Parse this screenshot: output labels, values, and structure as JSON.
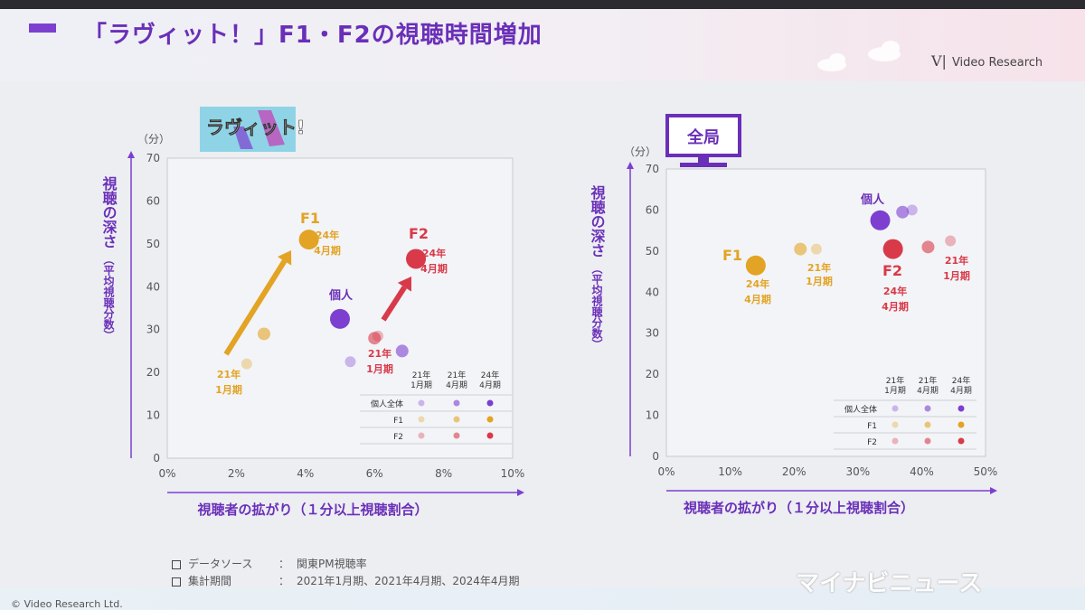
{
  "slide_title": "「ラヴィット！」F1・F2の視聴時間増加",
  "logo_text": "Video Research",
  "logo_mark": "V|",
  "colors": {
    "purple": "#7d3fd0",
    "yellow": "#e3a324",
    "red": "#d83a4a",
    "accent": "#6a2fb8"
  },
  "left_badge": "ラヴィット!",
  "right_badge": "全局",
  "notes": [
    {
      "key": "データソース",
      "sep": "：",
      "value": "関東PM視聴率"
    },
    {
      "key": "集計期間",
      "sep": "：",
      "value": "2021年1月期、2021年4月期、2024年4月期"
    }
  ],
  "watermark": "マイナビニュース",
  "copyright": "© Video Research Ltd.",
  "chart_data": [
    {
      "type": "scatter",
      "panel": "ラヴィット!",
      "xlabel": "視聴者の拡がり（１分以上視聴割合）",
      "ylabel_main": "視聴の深さ",
      "ylabel_sub": "（平均視聴分数）",
      "y_unit": "（分）",
      "xlim": [
        0,
        10
      ],
      "ylim": [
        0,
        70
      ],
      "x_ticks": [
        "0%",
        "2%",
        "4%",
        "6%",
        "8%",
        "10%"
      ],
      "y_ticks": [
        "0",
        "10",
        "20",
        "30",
        "40",
        "50",
        "60",
        "70"
      ],
      "series": [
        {
          "name": "個人全体",
          "color": "#7d3fd0",
          "points": [
            {
              "period": "21年1月期",
              "x": 5.3,
              "y": 22.5
            },
            {
              "period": "21年4月期",
              "x": 6.8,
              "y": 25.0
            },
            {
              "period": "24年4月期",
              "x": 5.0,
              "y": 32.5
            }
          ]
        },
        {
          "name": "F1",
          "color": "#e3a324",
          "points": [
            {
              "period": "21年1月期",
              "x": 2.3,
              "y": 22.0
            },
            {
              "period": "21年4月期",
              "x": 2.8,
              "y": 29.0
            },
            {
              "period": "24年4月期",
              "x": 4.1,
              "y": 51.0
            }
          ]
        },
        {
          "name": "F2",
          "color": "#d83a4a",
          "points": [
            {
              "period": "21年1月期",
              "x": 6.1,
              "y": 28.5
            },
            {
              "period": "21年4月期",
              "x": 6.0,
              "y": 28.0
            },
            {
              "period": "24年4月期",
              "x": 7.2,
              "y": 46.5
            }
          ]
        }
      ],
      "annotations": [
        {
          "text": "F1",
          "cls": "lbl-y"
        },
        {
          "text": "24年",
          "cls": "lbl-y"
        },
        {
          "text": "4月期",
          "cls": "lbl-y"
        },
        {
          "text": "F2",
          "cls": "lbl-r"
        },
        {
          "text": "24年",
          "cls": "lbl-r"
        },
        {
          "text": "4月期",
          "cls": "lbl-r"
        },
        {
          "text": "個人",
          "cls": "lbl-p"
        },
        {
          "text": "21年",
          "cls": "lbl-y"
        },
        {
          "text": "1月期",
          "cls": "lbl-y"
        },
        {
          "text": "21年",
          "cls": "lbl-r"
        },
        {
          "text": "1月期",
          "cls": "lbl-r"
        }
      ],
      "legend": {
        "columns": [
          [
            "21年",
            "1月期"
          ],
          [
            "21年",
            "4月期"
          ],
          [
            "24年",
            "4月期"
          ]
        ],
        "rows": [
          "個人全体",
          "F1",
          "F2"
        ]
      }
    },
    {
      "type": "scatter",
      "panel": "全局",
      "xlabel": "視聴者の拡がり（１分以上視聴割合）",
      "ylabel_main": "視聴の深さ",
      "ylabel_sub": "（平均視聴分数）",
      "y_unit": "（分）",
      "xlim": [
        0,
        50
      ],
      "ylim": [
        0,
        70
      ],
      "x_ticks": [
        "0%",
        "10%",
        "20%",
        "30%",
        "40%",
        "50%"
      ],
      "y_ticks": [
        "0",
        "10",
        "20",
        "30",
        "40",
        "50",
        "60",
        "70"
      ],
      "series": [
        {
          "name": "個人全体",
          "color": "#7d3fd0",
          "points": [
            {
              "period": "21年1月期",
              "x": 38.5,
              "y": 60.0
            },
            {
              "period": "21年4月期",
              "x": 37.0,
              "y": 59.5
            },
            {
              "period": "24年4月期",
              "x": 33.5,
              "y": 57.5
            }
          ]
        },
        {
          "name": "F1",
          "color": "#e3a324",
          "points": [
            {
              "period": "21年1月期",
              "x": 23.5,
              "y": 50.5
            },
            {
              "period": "21年4月期",
              "x": 21.0,
              "y": 50.5
            },
            {
              "period": "24年4月期",
              "x": 14.0,
              "y": 46.5
            }
          ]
        },
        {
          "name": "F2",
          "color": "#d83a4a",
          "points": [
            {
              "period": "21年1月期",
              "x": 44.5,
              "y": 52.5
            },
            {
              "period": "21年4月期",
              "x": 41.0,
              "y": 51.0
            },
            {
              "period": "24年4月期",
              "x": 35.5,
              "y": 50.5
            }
          ]
        }
      ],
      "annotations": [
        {
          "text": "個人",
          "cls": "lbl-p"
        },
        {
          "text": "F1",
          "cls": "lbl-y"
        },
        {
          "text": "24年",
          "cls": "lbl-y"
        },
        {
          "text": "4月期",
          "cls": "lbl-y"
        },
        {
          "text": "21年",
          "cls": "lbl-y"
        },
        {
          "text": "1月期",
          "cls": "lbl-y"
        },
        {
          "text": "F2",
          "cls": "lbl-r"
        },
        {
          "text": "24年",
          "cls": "lbl-r"
        },
        {
          "text": "4月期",
          "cls": "lbl-r"
        },
        {
          "text": "21年",
          "cls": "lbl-r"
        },
        {
          "text": "1月期",
          "cls": "lbl-r"
        }
      ],
      "legend": {
        "columns": [
          [
            "21年",
            "1月期"
          ],
          [
            "21年",
            "4月期"
          ],
          [
            "24年",
            "4月期"
          ]
        ],
        "rows": [
          "個人全体",
          "F1",
          "F2"
        ]
      }
    }
  ]
}
